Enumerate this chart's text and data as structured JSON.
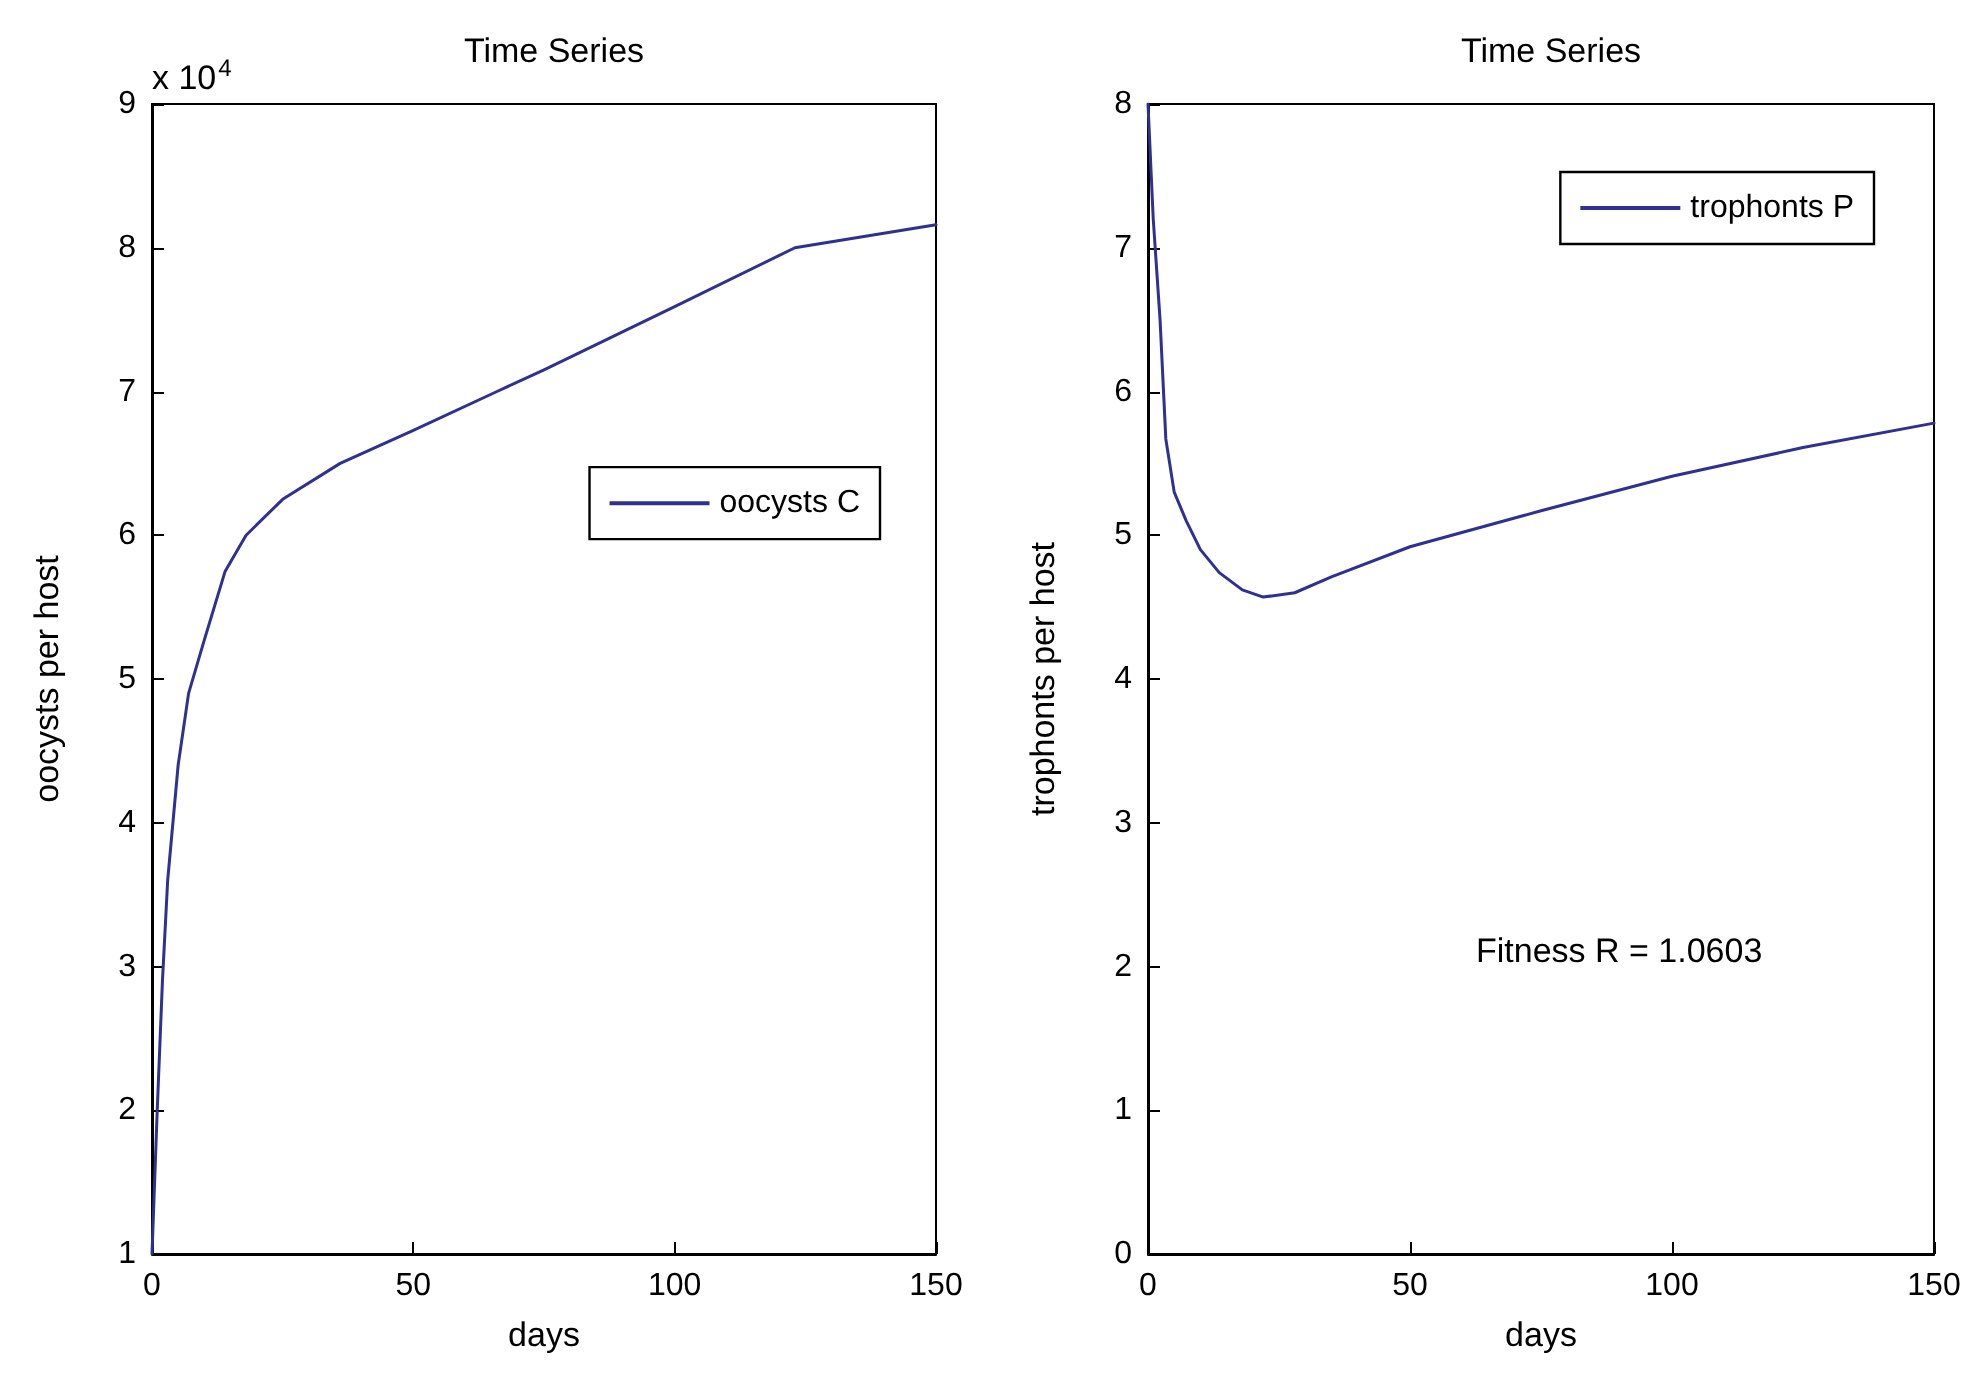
{
  "chart_data": [
    {
      "type": "line",
      "title": "Time Series",
      "xlabel": "days",
      "ylabel": "oocysts per host",
      "annotations": [
        "x 10$^{4}$"
      ],
      "x": [
        0,
        1,
        2,
        3,
        5,
        7,
        10,
        14,
        18,
        25,
        36,
        50,
        66,
        75,
        100,
        123,
        150
      ],
      "series": [
        {
          "name": "oocysts C",
          "color": "#2e3192",
          "values": [
            1.0,
            2.0,
            2.9,
            3.6,
            4.4,
            4.9,
            5.27,
            5.75,
            6.0,
            6.25,
            6.5,
            6.73,
            7.0,
            7.15,
            7.59,
            8.0,
            8.16
          ]
        }
      ],
      "xlim": [
        0,
        150
      ],
      "xticks": [
        0,
        50,
        100,
        150
      ],
      "ylim": [
        1,
        9
      ],
      "yticks": [
        1,
        2,
        3,
        4,
        5,
        6,
        7,
        8,
        9
      ],
      "legend": "right",
      "grid": false,
      "marker": "none",
      "line_style": "solid"
    },
    {
      "type": "line",
      "title": "Time Series",
      "xlabel": "days",
      "ylabel": "trophonts per host",
      "annotations": [
        "Fitness R = 1.0603"
      ],
      "x": [
        0,
        1,
        2.3,
        3.4,
        5,
        7.3,
        10,
        13.6,
        18,
        22,
        28,
        35,
        50,
        75,
        100,
        125,
        150
      ],
      "series": [
        {
          "name": "trophonts P",
          "color": "#2e3192",
          "values": [
            8.0,
            7.2,
            6.5,
            5.67,
            5.3,
            5.1,
            4.9,
            4.74,
            4.62,
            4.57,
            4.6,
            4.71,
            4.92,
            5.17,
            5.41,
            5.61,
            5.78
          ]
        }
      ],
      "xlim": [
        0,
        150
      ],
      "xticks": [
        0,
        50,
        100,
        150
      ],
      "ylim": [
        0,
        8
      ],
      "yticks": [
        0,
        1,
        2,
        3,
        4,
        5,
        6,
        7,
        8
      ],
      "legend": "top right",
      "grid": false,
      "marker": "none",
      "line_style": "solid"
    }
  ]
}
